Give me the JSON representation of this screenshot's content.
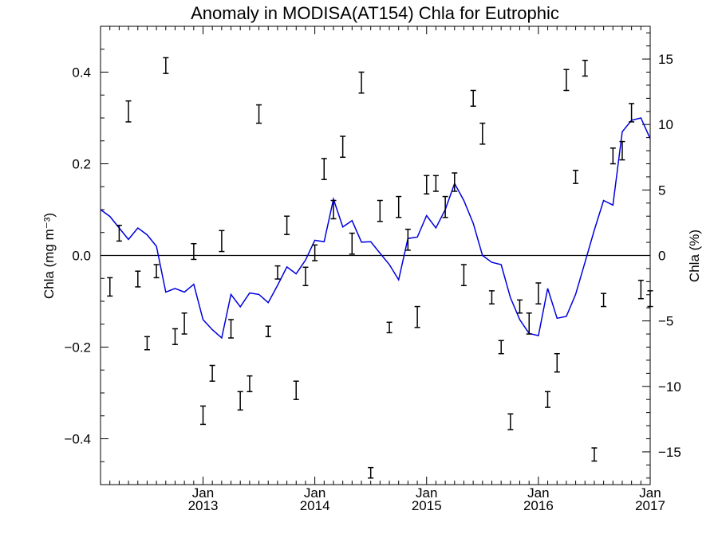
{
  "chart_data": {
    "type": "line",
    "title": "Anomaly in MODISA(AT154) Chla for Eutrophic",
    "ylabel_left": "Chla (mg m⁻³)",
    "ylabel_right": "Chla (%)",
    "xlim": [
      2012.083,
      2017.0
    ],
    "ylim_left": [
      -0.5,
      0.5
    ],
    "ylim_right": [
      -17.5,
      17.5
    ],
    "x_ticks": [
      {
        "x": 2013.0,
        "month": "Jan",
        "year": "2013"
      },
      {
        "x": 2014.0,
        "month": "Jan",
        "year": "2014"
      },
      {
        "x": 2015.0,
        "month": "Jan",
        "year": "2015"
      },
      {
        "x": 2016.0,
        "month": "Jan",
        "year": "2016"
      },
      {
        "x": 2017.0,
        "month": "Jan",
        "year": "2017"
      }
    ],
    "y_ticks_left": [
      "−0.4",
      "−0.2",
      "0.0",
      "0.2",
      "0.4"
    ],
    "y_ticks_left_values": [
      -0.4,
      -0.2,
      0.0,
      0.2,
      0.4
    ],
    "y_ticks_right": [
      "−15",
      "−10",
      "−5",
      "0",
      "5",
      "10",
      "15"
    ],
    "y_ticks_right_values": [
      -15,
      -10,
      -5,
      0,
      5,
      10,
      15
    ],
    "zero_line": 0.0,
    "line_color": "#0000dd",
    "errorbar_color": "#000000",
    "series": [
      {
        "kind": "line",
        "axis": "left",
        "x": [
          2012.083,
          2012.167,
          2012.25,
          2012.333,
          2012.417,
          2012.5,
          2012.583,
          2012.667,
          2012.75,
          2012.833,
          2012.917,
          2013.0,
          2013.083,
          2013.167,
          2013.25,
          2013.333,
          2013.417,
          2013.5,
          2013.583,
          2013.667,
          2013.75,
          2013.833,
          2013.917,
          2014.0,
          2014.083,
          2014.167,
          2014.25,
          2014.333,
          2014.417,
          2014.5,
          2014.583,
          2014.667,
          2014.75,
          2014.833,
          2014.917,
          2015.0,
          2015.083,
          2015.167,
          2015.25,
          2015.333,
          2015.417,
          2015.5,
          2015.583,
          2015.667,
          2015.75,
          2015.833,
          2015.917,
          2016.0,
          2016.083,
          2016.167,
          2016.25,
          2016.333,
          2016.417,
          2016.5,
          2016.583,
          2016.667,
          2016.75,
          2016.833,
          2016.917,
          2017.0
        ],
        "y": [
          0.1,
          0.085,
          0.06,
          0.035,
          0.06,
          0.045,
          0.02,
          -0.08,
          -0.072,
          -0.08,
          -0.063,
          -0.14,
          -0.162,
          -0.18,
          -0.085,
          -0.112,
          -0.082,
          -0.085,
          -0.103,
          -0.065,
          -0.025,
          -0.04,
          -0.01,
          0.033,
          0.03,
          0.123,
          0.062,
          0.076,
          0.029,
          0.03,
          0.005,
          -0.02,
          -0.053,
          0.037,
          0.04,
          0.087,
          0.06,
          0.1,
          0.157,
          0.12,
          0.07,
          0.0,
          -0.015,
          -0.02,
          -0.092,
          -0.14,
          -0.17,
          -0.175,
          -0.072,
          -0.137,
          -0.133,
          -0.085,
          -0.015,
          0.055,
          0.12,
          0.11,
          0.27,
          0.295,
          0.3,
          0.255
        ]
      },
      {
        "kind": "errorbar",
        "axis": "right",
        "x": [
          2012.167,
          2012.25,
          2012.333,
          2012.417,
          2012.5,
          2012.583,
          2012.667,
          2012.75,
          2012.833,
          2012.917,
          2013.0,
          2013.083,
          2013.167,
          2013.25,
          2013.333,
          2013.417,
          2013.5,
          2013.583,
          2013.667,
          2013.75,
          2013.833,
          2013.917,
          2014.0,
          2014.083,
          2014.167,
          2014.25,
          2014.333,
          2014.417,
          2014.5,
          2014.583,
          2014.667,
          2014.75,
          2014.833,
          2014.917,
          2015.0,
          2015.083,
          2015.167,
          2015.25,
          2015.333,
          2015.417,
          2015.5,
          2015.583,
          2015.667,
          2015.75,
          2015.833,
          2015.917,
          2016.0,
          2016.083,
          2016.167,
          2016.25,
          2016.333,
          2016.417,
          2016.5,
          2016.583,
          2016.667,
          2016.75,
          2016.833,
          2016.917,
          2017.0
        ],
        "y": [
          -2.4,
          1.7,
          11.0,
          -1.8,
          -6.7,
          -1.2,
          14.5,
          -6.2,
          -5.2,
          0.3,
          -12.2,
          -9.0,
          1.1,
          -5.6,
          -11.1,
          -9.8,
          10.8,
          -5.8,
          -1.3,
          2.3,
          -10.3,
          -1.6,
          0.2,
          6.6,
          3.5,
          8.3,
          0.9,
          13.2,
          -16.6,
          3.4,
          -5.5,
          3.7,
          1.2,
          -4.7,
          5.4,
          5.5,
          3.7,
          5.6,
          -1.5,
          12.0,
          9.3,
          -3.2,
          -7.0,
          -12.7,
          -3.9,
          -5.2,
          -2.9,
          -11.0,
          -8.2,
          13.4,
          6.0,
          14.3,
          -15.2,
          -3.4,
          7.6,
          8.0,
          10.9,
          -2.6,
          -3.3
        ],
        "err": [
          0.7,
          0.6,
          0.8,
          0.6,
          0.5,
          0.5,
          0.6,
          0.6,
          0.8,
          0.6,
          0.7,
          0.6,
          0.8,
          0.7,
          0.7,
          0.6,
          0.7,
          0.4,
          0.5,
          0.7,
          0.7,
          0.7,
          0.6,
          0.8,
          0.7,
          0.8,
          0.8,
          0.8,
          0.4,
          0.8,
          0.4,
          0.8,
          0.8,
          0.8,
          0.7,
          0.6,
          0.8,
          0.7,
          0.8,
          0.6,
          0.8,
          0.5,
          0.5,
          0.6,
          0.5,
          0.8,
          0.8,
          0.6,
          0.7,
          0.8,
          0.5,
          0.6,
          0.5,
          0.5,
          0.6,
          0.7,
          0.7,
          0.7,
          0.6
        ]
      }
    ],
    "grid": false,
    "legend": "none"
  }
}
